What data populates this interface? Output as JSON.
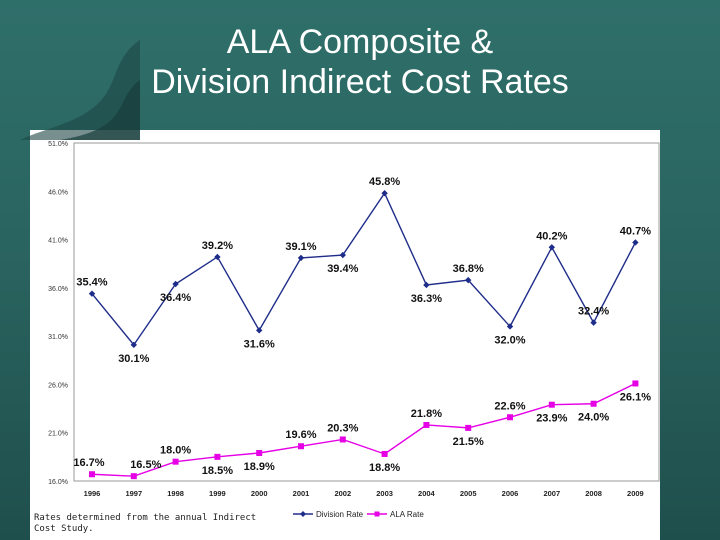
{
  "title": {
    "line1": "ALA Composite &",
    "line2": "Division Indirect Cost Rates"
  },
  "footnote": "Rates determined from the annual Indirect Cost Study.",
  "colors": {
    "background": "#2a6460",
    "division": "#1f2d8a",
    "ala": "#e600e6"
  },
  "chart_data": {
    "type": "line",
    "title": "",
    "xlabel": "",
    "ylabel": "",
    "categories": [
      "1996",
      "1997",
      "1998",
      "1999",
      "2000",
      "2001",
      "2002",
      "2003",
      "2004",
      "2005",
      "2006",
      "2007",
      "2008",
      "2009"
    ],
    "ylim": [
      16.0,
      51.0
    ],
    "yticks": [
      16.0,
      21.0,
      26.0,
      31.0,
      36.0,
      41.0,
      46.0,
      51.0
    ],
    "ytick_labels": [
      "16.0%",
      "21.0%",
      "26.0%",
      "31.0%",
      "36.0%",
      "41.0%",
      "46.0%",
      "51.0%"
    ],
    "grid": false,
    "legend_position": "bottom-right",
    "series": [
      {
        "name": "Division Rate",
        "color": "#1f2d8a",
        "marker": "diamond",
        "values": [
          35.4,
          30.1,
          36.4,
          39.2,
          31.6,
          39.1,
          39.4,
          45.8,
          36.3,
          36.8,
          32.0,
          40.2,
          32.4,
          40.7
        ],
        "labels": [
          "35.4%",
          "30.1%",
          "36.4%",
          "39.2%",
          "31.6%",
          "39.1%",
          "39.4%",
          "45.8%",
          "36.3%",
          "36.8%",
          "32.0%",
          "40.2%",
          "32.4%",
          "40.7%"
        ]
      },
      {
        "name": "ALA Rate",
        "color": "#e600e6",
        "marker": "square",
        "values": [
          16.7,
          16.5,
          18.0,
          18.5,
          18.9,
          19.6,
          20.3,
          18.8,
          21.8,
          21.5,
          22.6,
          23.9,
          24.0,
          26.1
        ],
        "labels": [
          "16.7%",
          "16.5%",
          "18.0%",
          "18.5%",
          "18.9%",
          "19.6%",
          "20.3%",
          "18.8%",
          "21.8%",
          "21.5%",
          "22.6%",
          "23.9%",
          "24.0%",
          "26.1%"
        ]
      }
    ]
  }
}
